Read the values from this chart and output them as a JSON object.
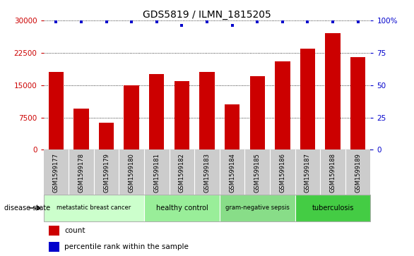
{
  "title": "GDS5819 / ILMN_1815205",
  "samples": [
    "GSM1599177",
    "GSM1599178",
    "GSM1599179",
    "GSM1599180",
    "GSM1599181",
    "GSM1599182",
    "GSM1599183",
    "GSM1599184",
    "GSM1599185",
    "GSM1599186",
    "GSM1599187",
    "GSM1599188",
    "GSM1599189"
  ],
  "counts": [
    18000,
    9500,
    6200,
    15000,
    17500,
    16000,
    18000,
    10500,
    17000,
    20500,
    23500,
    27000,
    21500
  ],
  "percentile_ranks": [
    99,
    99,
    99,
    99,
    99,
    96,
    99,
    96,
    99,
    99,
    99,
    99,
    99
  ],
  "ylim_left": [
    0,
    30000
  ],
  "ylim_right": [
    0,
    100
  ],
  "yticks_left": [
    0,
    7500,
    15000,
    22500,
    30000
  ],
  "yticks_right": [
    0,
    25,
    50,
    75,
    100
  ],
  "bar_color": "#cc0000",
  "dot_color": "#0000cc",
  "groups": [
    {
      "label": "metastatic breast cancer",
      "start": 0,
      "end": 3,
      "color": "#ccffcc"
    },
    {
      "label": "healthy control",
      "start": 4,
      "end": 6,
      "color": "#99ee99"
    },
    {
      "label": "gram-negative sepsis",
      "start": 7,
      "end": 9,
      "color": "#88dd88"
    },
    {
      "label": "tuberculosis",
      "start": 10,
      "end": 12,
      "color": "#44cc44"
    }
  ],
  "disease_state_label": "disease state",
  "legend_count_label": "count",
  "legend_percentile_label": "percentile rank within the sample",
  "bar_width": 0.6,
  "tick_color_left": "#cc0000",
  "tick_color_right": "#0000cc",
  "background_color": "#ffffff",
  "sample_bg_color": "#cccccc"
}
